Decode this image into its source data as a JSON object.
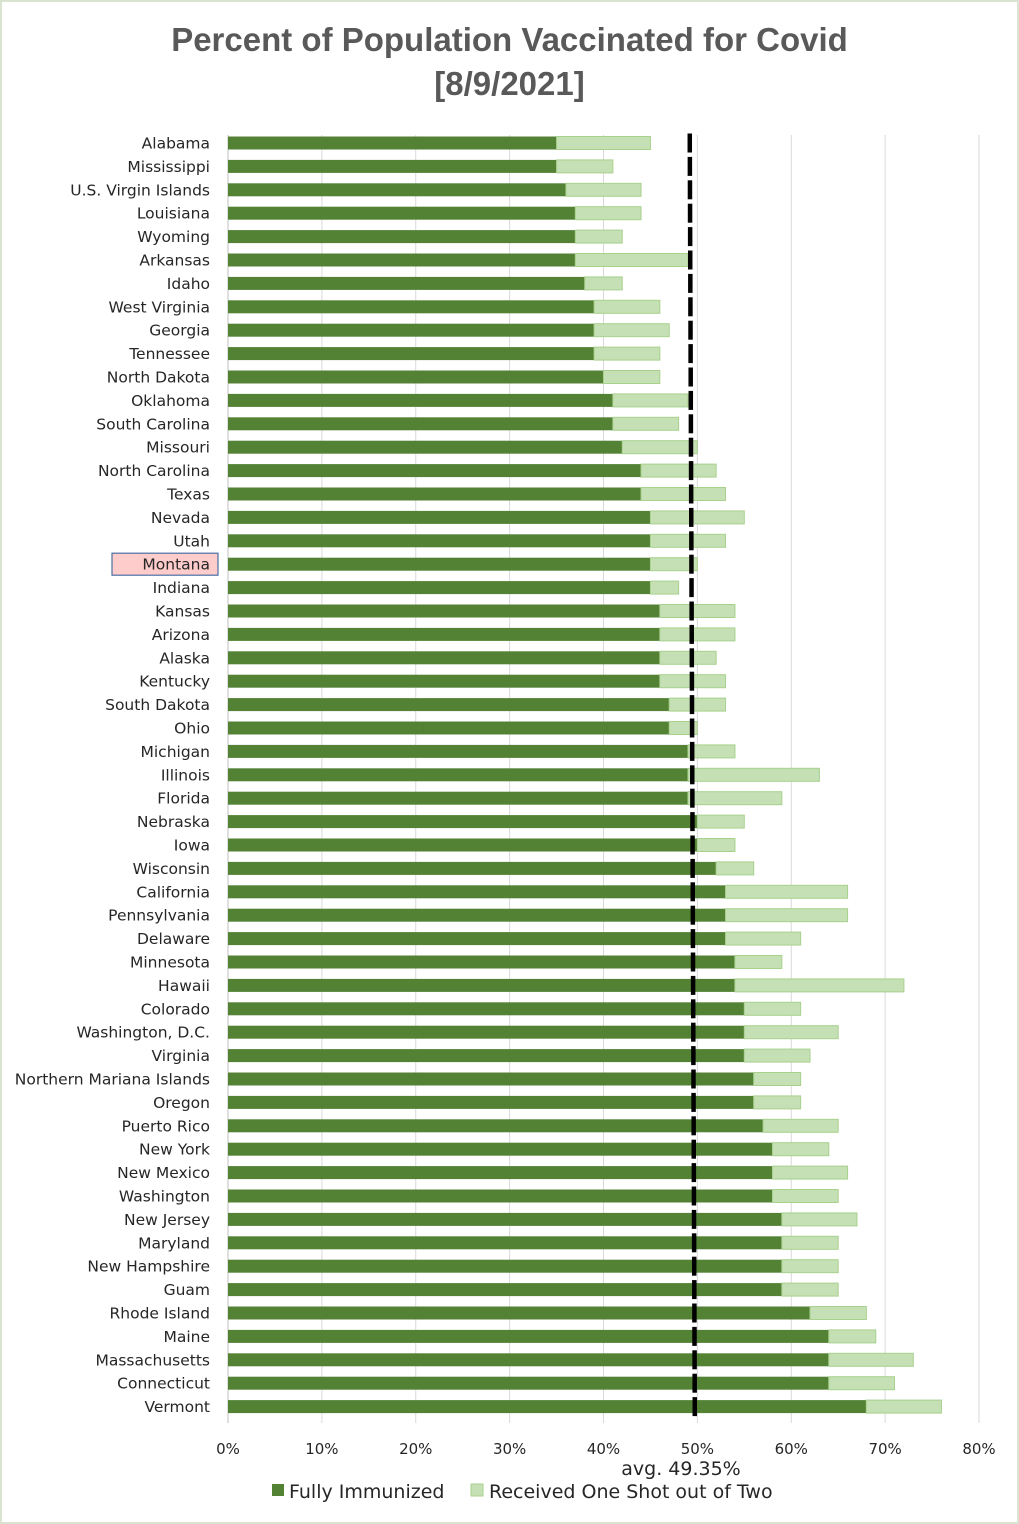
{
  "chart_data": {
    "type": "bar",
    "orientation": "horizontal",
    "stacked": true,
    "title": [
      "Percent of Population Vaccinated for Covid",
      "[8/9/2021]"
    ],
    "xlabel": "",
    "ylabel": "",
    "xlim": [
      0,
      80
    ],
    "x_ticks": [
      "0%",
      "10%",
      "20%",
      "30%",
      "40%",
      "50%",
      "60%",
      "70%",
      "80%"
    ],
    "grid": "vertical",
    "legend_position": "bottom",
    "highlighted_category": "Montana",
    "highlight_color": "#ffcccc",
    "highlight_border": "#4a6fa5",
    "categories": [
      "Alabama",
      "Mississippi",
      "U.S. Virgin Islands",
      "Louisiana",
      "Wyoming",
      "Arkansas",
      "Idaho",
      "West Virginia",
      "Georgia",
      "Tennessee",
      "North Dakota",
      "Oklahoma",
      "South Carolina",
      "Missouri",
      "North Carolina",
      "Texas",
      "Nevada",
      "Utah",
      "Montana",
      "Indiana",
      "Kansas",
      "Arizona",
      "Alaska",
      "Kentucky",
      "South Dakota",
      "Ohio",
      "Michigan",
      "Illinois",
      "Florida",
      "Nebraska",
      "Iowa",
      "Wisconsin",
      "California",
      "Pennsylvania",
      "Delaware",
      "Minnesota",
      "Hawaii",
      "Colorado",
      "Washington, D.C.",
      "Virginia",
      "Northern Mariana Islands",
      "Oregon",
      "Puerto Rico",
      "New York",
      "New Mexico",
      "Washington",
      "New Jersey",
      "Maryland",
      "New Hampshire",
      "Guam",
      "Rhode Island",
      "Maine",
      "Massachusetts",
      "Connecticut",
      "Vermont"
    ],
    "series": [
      {
        "name": "Fully Immunized",
        "color": "#548235",
        "values": [
          35,
          35,
          36,
          37,
          37,
          37,
          38,
          39,
          39,
          39,
          40,
          41,
          41,
          42,
          44,
          44,
          45,
          45,
          45,
          45,
          46,
          46,
          46,
          46,
          47,
          47,
          49,
          49,
          49,
          50,
          50,
          52,
          53,
          53,
          53,
          54,
          54,
          55,
          55,
          55,
          56,
          56,
          57,
          58,
          58,
          58,
          59,
          59,
          59,
          59,
          62,
          64,
          64,
          64,
          68
        ]
      },
      {
        "name": "Received One Shot out of Two",
        "color": "#c5e0b4",
        "values": [
          10,
          6,
          8,
          7,
          5,
          12,
          4,
          7,
          8,
          7,
          6,
          8,
          7,
          8,
          8,
          9,
          10,
          8,
          5,
          3,
          8,
          8,
          6,
          7,
          6,
          3,
          5,
          14,
          10,
          5,
          4,
          4,
          13,
          13,
          8,
          5,
          18,
          6,
          10,
          7,
          5,
          5,
          8,
          6,
          8,
          7,
          8,
          6,
          6,
          6,
          6,
          5,
          9,
          7,
          8
        ]
      }
    ],
    "average": {
      "value": 49.35,
      "label": "avg. 49.35%",
      "color": "#000000"
    }
  }
}
